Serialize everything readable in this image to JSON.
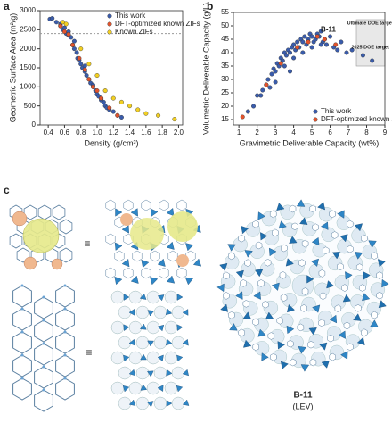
{
  "chart_data": [
    {
      "type": "scatter",
      "panel_label": "a",
      "x_label": "Density (g/cm³)",
      "y_label": "Geometric Surface Area (m²/g)",
      "xlim": [
        0.3,
        2.05
      ],
      "ylim": [
        0,
        3000
      ],
      "xticks": [
        0.4,
        0.6,
        0.8,
        {
          "value": 1,
          "label": "1.0"
        },
        1.2,
        1.4,
        1.6,
        1.8,
        {
          "value": 2,
          "label": "2.0"
        }
      ],
      "yticks": [
        0,
        500,
        1000,
        1500,
        2000,
        2500,
        3000
      ],
      "reference_line": 2400,
      "legend": "upper right",
      "series": [
        {
          "name": "This work",
          "color": "#3a5cab",
          "x": [
            0.42,
            0.45,
            0.5,
            0.55,
            0.58,
            0.6,
            0.62,
            0.65,
            0.68,
            0.7,
            0.72,
            0.75,
            0.76,
            0.78,
            0.8,
            0.82,
            0.85,
            0.87,
            0.9,
            0.92,
            0.95,
            0.98,
            1.0,
            1.02,
            1.05,
            1.08,
            1.1,
            1.12,
            1.15,
            1.2,
            1.25,
            1.3,
            0.55,
            0.65,
            0.72,
            0.85,
            0.95,
            1.05
          ],
          "values": [
            2780,
            2800,
            2700,
            2650,
            2500,
            2550,
            2400,
            2350,
            2300,
            2100,
            2000,
            1900,
            1750,
            1700,
            1600,
            1500,
            1400,
            1300,
            1200,
            1100,
            1000,
            900,
            800,
            750,
            700,
            600,
            500,
            450,
            400,
            350,
            250,
            200,
            2600,
            2450,
            2200,
            1550,
            1050,
            650
          ]
        },
        {
          "name": "DFT-optimized known ZIFs",
          "color": "#e2532c",
          "x": [
            0.55,
            0.6,
            0.65,
            0.7,
            0.78,
            0.85,
            0.9,
            0.95,
            1.0,
            1.05,
            1.15,
            1.25
          ],
          "values": [
            2600,
            2450,
            2380,
            2100,
            1750,
            1450,
            1200,
            1000,
            900,
            700,
            450,
            250
          ]
        },
        {
          "name": "Known ZIFs",
          "color": "#f2cf22",
          "x": [
            0.58,
            0.62,
            0.8,
            0.9,
            1.0,
            1.1,
            1.2,
            1.3,
            1.4,
            1.5,
            1.6,
            1.75,
            1.95
          ],
          "values": [
            2700,
            2650,
            2000,
            1600,
            1300,
            900,
            700,
            600,
            500,
            400,
            300,
            250,
            150
          ]
        }
      ]
    },
    {
      "type": "scatter",
      "panel_label": "b",
      "x_label": "Gravimetric Deliverable Capacity (wt%)",
      "y_label": "Volumetric Deliverable Capacity (g/L)",
      "xlim": [
        0.7,
        9
      ],
      "ylim": [
        13,
        55
      ],
      "xticks": [
        1,
        2,
        3,
        4,
        5,
        6,
        7,
        8,
        9
      ],
      "yticks": [
        15,
        20,
        25,
        30,
        35,
        40,
        45,
        50,
        55
      ],
      "legend": "lower right",
      "annotations": [
        {
          "text": "B-11",
          "x": 5.9,
          "y": 48.5
        },
        {
          "text": "Ultimate DOE target",
          "x": 8.2,
          "y": 51
        },
        {
          "text": "2025 DOE target",
          "x": 8.2,
          "y": 42
        }
      ],
      "series": [
        {
          "name": "This work",
          "color": "#3a5cab",
          "x": [
            1.5,
            1.8,
            2.0,
            2.2,
            2.3,
            2.5,
            2.6,
            2.8,
            2.9,
            3.0,
            3.1,
            3.2,
            3.3,
            3.4,
            3.5,
            3.6,
            3.7,
            3.8,
            3.9,
            4.0,
            4.1,
            4.2,
            4.3,
            4.4,
            4.5,
            4.6,
            4.7,
            4.8,
            4.9,
            5.0,
            5.1,
            5.2,
            5.3,
            5.4,
            5.5,
            5.6,
            5.7,
            5.8,
            6.0,
            6.2,
            6.4,
            6.6,
            6.9,
            7.2,
            7.8,
            8.3,
            3.0,
            3.5,
            4.0,
            4.5,
            5.0,
            5.5,
            2.7,
            3.8
          ],
          "values": [
            18,
            20,
            24,
            24,
            26,
            28,
            30,
            32,
            34,
            33,
            36,
            35,
            38,
            37,
            40,
            39,
            41,
            40,
            42,
            43,
            41,
            44,
            42,
            45,
            44,
            46,
            43,
            45,
            47,
            46,
            44,
            45,
            47,
            46,
            48,
            44,
            45,
            43,
            46,
            42,
            41,
            44,
            40,
            41,
            39,
            37,
            29,
            35,
            38,
            40,
            42,
            43,
            27,
            33
          ]
        },
        {
          "name": "DFT-optimized known ZIFs",
          "color": "#e2532c",
          "x": [
            1.2,
            2.5,
            3.3,
            4.2,
            4.8,
            5.3,
            5.7,
            6.3
          ],
          "values": [
            16,
            28,
            36,
            42,
            44,
            46,
            45,
            43
          ]
        }
      ]
    }
  ],
  "panel_c": {
    "label": "c",
    "equivalence": [
      "≡",
      "≡"
    ],
    "name": "B-11",
    "topology": "(LEV)"
  }
}
